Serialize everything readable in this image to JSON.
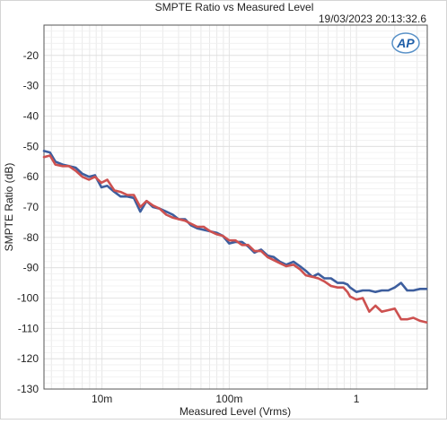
{
  "chart_data": {
    "type": "line",
    "title": "SMPTE Ratio vs Measured Level",
    "timestamp": "19/03/2023 20:13:32.6",
    "logo": "AP",
    "xlabel": "Measured Level (Vrms)",
    "ylabel": "SMPTE Ratio (dB)",
    "xscale": "log",
    "xlim": [
      0.0035,
      3.6
    ],
    "ylim": [
      -130,
      -10
    ],
    "grid": true,
    "x_ticks": [
      0.01,
      0.1,
      1
    ],
    "x_tick_labels": [
      "10m",
      "100m",
      "1"
    ],
    "y_ticks": [
      -20,
      -30,
      -40,
      -50,
      -60,
      -70,
      -80,
      -90,
      -100,
      -110,
      -120,
      -130
    ],
    "y_tick_labels": [
      "-20",
      "-30",
      "-40",
      "-50",
      "-60",
      "-70",
      "-80",
      "-90",
      "-100",
      "-110",
      "-120",
      "-130"
    ],
    "colors": {
      "blue": "#3d5e9e",
      "red": "#cd5150",
      "grid": "#e4e4e4",
      "axis": "#555555"
    },
    "series": [
      {
        "color": "#3d5e9e",
        "x": [
          0.0035,
          0.0039,
          0.0043,
          0.0049,
          0.0055,
          0.0062,
          0.007,
          0.0079,
          0.0088,
          0.0099,
          0.011,
          0.0125,
          0.014,
          0.0158,
          0.0178,
          0.02,
          0.0224,
          0.0252,
          0.0283,
          0.032,
          0.036,
          0.04,
          0.045,
          0.05,
          0.056,
          0.063,
          0.071,
          0.08,
          0.089,
          0.1,
          0.112,
          0.126,
          0.141,
          0.158,
          0.178,
          0.2,
          0.224,
          0.25,
          0.28,
          0.32,
          0.36,
          0.4,
          0.45,
          0.5,
          0.56,
          0.63,
          0.71,
          0.79,
          0.85,
          0.89,
          1.0,
          1.12,
          1.26,
          1.41,
          1.58,
          1.78,
          2.0,
          2.24,
          2.5,
          2.8,
          3.16,
          3.55
        ],
        "y": [
          -51.5,
          -52,
          -55,
          -56,
          -56.5,
          -57,
          -59,
          -60,
          -59.5,
          -63.5,
          -63,
          -65,
          -66.5,
          -66.5,
          -67,
          -71.5,
          -68,
          -70,
          -70.5,
          -71.5,
          -72.5,
          -74,
          -74,
          -76,
          -77,
          -77.5,
          -78,
          -78.5,
          -79.5,
          -82,
          -81.5,
          -81.5,
          -83,
          -85,
          -84,
          -86,
          -86.5,
          -88,
          -89,
          -88,
          -89.5,
          -91,
          -93,
          -92,
          -93.5,
          -93.5,
          -95,
          -95,
          -95.5,
          -96.5,
          -98,
          -97.5,
          -97.5,
          -98,
          -97.5,
          -97.5,
          -96.5,
          -95,
          -97.5,
          -97.5,
          -97,
          -97
        ]
      },
      {
        "color": "#cd5150",
        "x": [
          0.0035,
          0.0039,
          0.0043,
          0.0049,
          0.0055,
          0.0062,
          0.007,
          0.0079,
          0.0088,
          0.0099,
          0.011,
          0.0125,
          0.014,
          0.0158,
          0.0178,
          0.02,
          0.0224,
          0.0252,
          0.0283,
          0.032,
          0.036,
          0.04,
          0.045,
          0.05,
          0.056,
          0.063,
          0.071,
          0.08,
          0.089,
          0.1,
          0.112,
          0.126,
          0.141,
          0.158,
          0.178,
          0.2,
          0.224,
          0.25,
          0.28,
          0.32,
          0.36,
          0.4,
          0.45,
          0.5,
          0.56,
          0.63,
          0.71,
          0.79,
          0.85,
          0.89,
          1.0,
          1.12,
          1.26,
          1.41,
          1.58,
          1.78,
          2.0,
          2.24,
          2.5,
          2.8,
          3.16,
          3.55
        ],
        "y": [
          -53.5,
          -53,
          -56,
          -56.5,
          -56.5,
          -58,
          -60,
          -61,
          -60,
          -62,
          -61,
          -64.5,
          -65,
          -66,
          -66,
          -70,
          -68,
          -69.5,
          -70.5,
          -72.5,
          -73.5,
          -74,
          -74.5,
          -75.5,
          -76.5,
          -76.5,
          -78,
          -79,
          -79.5,
          -81,
          -81,
          -82.5,
          -82.5,
          -84.5,
          -84.5,
          -86.5,
          -87.5,
          -88.5,
          -89.5,
          -89,
          -90.5,
          -92.5,
          -93,
          -93.5,
          -94.5,
          -96,
          -96.5,
          -96.5,
          -98,
          -99.5,
          -100.5,
          -100,
          -104.5,
          -102.5,
          -104.5,
          -104,
          -103.5,
          -107,
          -107,
          -106.5,
          -107.5,
          -108
        ]
      }
    ]
  }
}
